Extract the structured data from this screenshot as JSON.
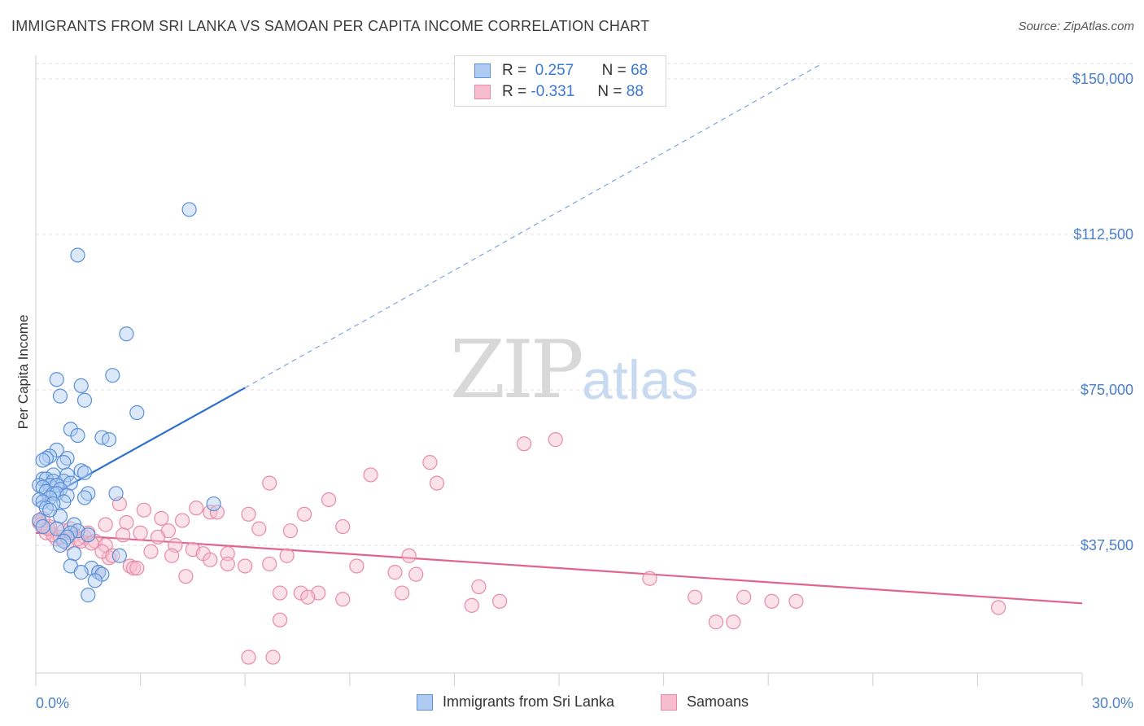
{
  "title": "IMMIGRANTS FROM SRI LANKA VS SAMOAN PER CAPITA INCOME CORRELATION CHART",
  "source": "Source: ZipAtlas.com",
  "watermark": {
    "zip": "ZIP",
    "atlas": "atlas"
  },
  "legend": {
    "rows": [
      {
        "r_label": "R =",
        "r_value": "0.257",
        "n_label": "N =",
        "n_value": "68"
      },
      {
        "r_label": "R =",
        "r_value": "-0.331",
        "n_label": "N =",
        "n_value": "88"
      }
    ]
  },
  "bottom_legend": {
    "series1": "Immigrants from Sri Lanka",
    "series2": "Samoans"
  },
  "colors": {
    "blue_fill": "#aecbf2",
    "blue_stroke": "#5b8fd6",
    "blue_line": "#2f6fcf",
    "pink_fill": "#f7bccd",
    "pink_stroke": "#e88aa6",
    "pink_line": "#e0648f",
    "axis_text": "#4a7fc9",
    "grid": "#dddddd"
  },
  "chart_data": {
    "type": "scatter",
    "title": "IMMIGRANTS FROM SRI LANKA VS SAMOAN PER CAPITA INCOME CORRELATION CHART",
    "xlabel": "",
    "ylabel": "Per Capita Income",
    "xlim": [
      0,
      30
    ],
    "ylim": [
      0,
      155000
    ],
    "x_tick_labels": [
      "0.0%",
      "30.0%"
    ],
    "y_ticks": [
      37500,
      75000,
      112500,
      150000
    ],
    "y_tick_labels": [
      "$37,500",
      "$75,000",
      "$112,500",
      "$150,000"
    ],
    "series": [
      {
        "name": "Immigrants from Sri Lanka",
        "color": "#5b8fd6",
        "trend": {
          "x0": 0,
          "y0": 47500,
          "x1": 6.0,
          "y1": 75500,
          "dashed_to_x": 22.5,
          "dashed_to_y": 153500
        },
        "points": [
          [
            4.4,
            118500
          ],
          [
            1.2,
            107500
          ],
          [
            2.6,
            88500
          ],
          [
            2.2,
            78500
          ],
          [
            0.6,
            77500
          ],
          [
            1.3,
            76000
          ],
          [
            0.7,
            73500
          ],
          [
            1.4,
            72500
          ],
          [
            2.9,
            69500
          ],
          [
            1.0,
            65500
          ],
          [
            1.2,
            64000
          ],
          [
            1.9,
            63500
          ],
          [
            2.1,
            63000
          ],
          [
            0.6,
            60500
          ],
          [
            0.4,
            59000
          ],
          [
            0.3,
            58500
          ],
          [
            0.9,
            58500
          ],
          [
            0.2,
            58000
          ],
          [
            0.8,
            57500
          ],
          [
            1.3,
            55500
          ],
          [
            1.4,
            55000
          ],
          [
            0.5,
            54500
          ],
          [
            0.9,
            54500
          ],
          [
            0.2,
            53500
          ],
          [
            0.3,
            53500
          ],
          [
            0.5,
            53000
          ],
          [
            0.8,
            53000
          ],
          [
            1.0,
            52500
          ],
          [
            0.1,
            52000
          ],
          [
            0.4,
            52000
          ],
          [
            0.6,
            52000
          ],
          [
            0.2,
            51500
          ],
          [
            0.7,
            51000
          ],
          [
            0.3,
            50500
          ],
          [
            0.5,
            50000
          ],
          [
            0.6,
            50000
          ],
          [
            1.5,
            50000
          ],
          [
            2.3,
            50000
          ],
          [
            0.9,
            49500
          ],
          [
            0.4,
            49000
          ],
          [
            1.4,
            49000
          ],
          [
            0.1,
            48500
          ],
          [
            0.2,
            48000
          ],
          [
            0.8,
            48000
          ],
          [
            0.5,
            47500
          ],
          [
            5.1,
            47500
          ],
          [
            0.3,
            46500
          ],
          [
            0.7,
            44500
          ],
          [
            0.1,
            43500
          ],
          [
            1.1,
            42500
          ],
          [
            0.2,
            42000
          ],
          [
            0.6,
            41500
          ],
          [
            1.2,
            41000
          ],
          [
            1.0,
            40500
          ],
          [
            1.5,
            40000
          ],
          [
            0.9,
            39500
          ],
          [
            0.8,
            38500
          ],
          [
            0.7,
            37500
          ],
          [
            2.4,
            35000
          ],
          [
            1.1,
            35500
          ],
          [
            1.0,
            32500
          ],
          [
            1.6,
            32000
          ],
          [
            1.3,
            31000
          ],
          [
            1.8,
            31000
          ],
          [
            1.9,
            30500
          ],
          [
            1.7,
            29000
          ],
          [
            1.5,
            25500
          ],
          [
            0.4,
            46000
          ]
        ]
      },
      {
        "name": "Samoans",
        "color": "#e88aa6",
        "trend": {
          "x0": 0,
          "y0": 40500,
          "x1": 30,
          "y1": 23500
        },
        "points": [
          [
            14.9,
            63000
          ],
          [
            14.0,
            62000
          ],
          [
            11.3,
            57500
          ],
          [
            9.6,
            54500
          ],
          [
            11.5,
            52500
          ],
          [
            6.7,
            52500
          ],
          [
            8.4,
            48500
          ],
          [
            2.4,
            47500
          ],
          [
            4.6,
            46500
          ],
          [
            3.1,
            46000
          ],
          [
            5.0,
            45500
          ],
          [
            5.2,
            45500
          ],
          [
            6.1,
            45000
          ],
          [
            7.7,
            45000
          ],
          [
            3.6,
            44000
          ],
          [
            4.2,
            43500
          ],
          [
            2.6,
            43000
          ],
          [
            2.0,
            42500
          ],
          [
            0.4,
            42000
          ],
          [
            8.8,
            42000
          ],
          [
            6.4,
            41500
          ],
          [
            7.3,
            41000
          ],
          [
            3.8,
            41000
          ],
          [
            3.0,
            40500
          ],
          [
            1.1,
            40000
          ],
          [
            2.5,
            40000
          ],
          [
            1.4,
            39500
          ],
          [
            3.5,
            39500
          ],
          [
            0.6,
            39000
          ],
          [
            1.7,
            38500
          ],
          [
            0.9,
            38000
          ],
          [
            1.3,
            38500
          ],
          [
            2.0,
            37500
          ],
          [
            4.0,
            37500
          ],
          [
            4.5,
            36500
          ],
          [
            3.3,
            36000
          ],
          [
            4.8,
            35500
          ],
          [
            5.5,
            35500
          ],
          [
            3.9,
            35000
          ],
          [
            7.2,
            35000
          ],
          [
            10.7,
            35000
          ],
          [
            2.1,
            34500
          ],
          [
            5.0,
            34000
          ],
          [
            5.5,
            33000
          ],
          [
            6.7,
            33000
          ],
          [
            9.2,
            32500
          ],
          [
            6.0,
            32500
          ],
          [
            2.7,
            32500
          ],
          [
            2.8,
            32000
          ],
          [
            2.9,
            32000
          ],
          [
            1.8,
            31000
          ],
          [
            10.3,
            31000
          ],
          [
            10.9,
            30500
          ],
          [
            4.3,
            30000
          ],
          [
            17.6,
            29500
          ],
          [
            12.7,
            27500
          ],
          [
            10.5,
            26000
          ],
          [
            7.0,
            26000
          ],
          [
            7.6,
            26000
          ],
          [
            8.1,
            26000
          ],
          [
            7.8,
            25000
          ],
          [
            18.9,
            25000
          ],
          [
            20.3,
            25000
          ],
          [
            13.3,
            24000
          ],
          [
            8.8,
            24500
          ],
          [
            21.1,
            24000
          ],
          [
            21.8,
            24000
          ],
          [
            12.5,
            23000
          ],
          [
            27.6,
            22500
          ],
          [
            7.0,
            19500
          ],
          [
            19.5,
            19000
          ],
          [
            20.0,
            19000
          ],
          [
            6.1,
            10500
          ],
          [
            6.8,
            10500
          ],
          [
            0.1,
            43000
          ],
          [
            0.2,
            44000
          ],
          [
            0.3,
            40500
          ],
          [
            0.5,
            40000
          ],
          [
            0.7,
            39500
          ],
          [
            0.8,
            41000
          ],
          [
            1.0,
            41500
          ],
          [
            1.2,
            39000
          ],
          [
            1.5,
            40500
          ],
          [
            1.6,
            38000
          ],
          [
            1.9,
            36000
          ],
          [
            2.2,
            35000
          ],
          [
            0.15,
            42500
          ],
          [
            0.35,
            41500
          ]
        ]
      }
    ]
  }
}
